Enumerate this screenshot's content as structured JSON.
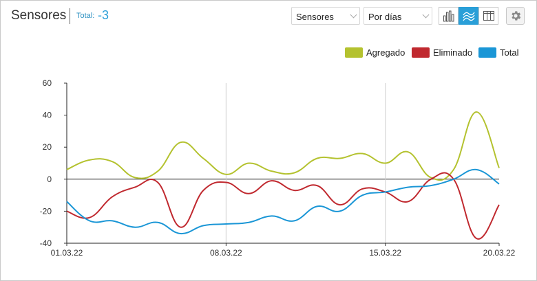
{
  "header": {
    "title": "Sensores",
    "total_label": "Total:",
    "total_value": "-3",
    "select_metric": "Sensores",
    "select_period": "Por días"
  },
  "icons": {
    "bar_chart": "bar-chart-icon",
    "line_chart": "line-chart-icon",
    "table": "table-icon",
    "settings": "gear-icon"
  },
  "colors": {
    "agregado": "#b4c22f",
    "eliminado": "#c0292f",
    "total": "#1a96d6",
    "accent": "#2a9fd8"
  },
  "chart_data": {
    "type": "line",
    "legend_position": "top-right",
    "grid": true,
    "x": [
      "01.03.22",
      "02.03.22",
      "03.03.22",
      "04.03.22",
      "05.03.22",
      "06.03.22",
      "07.03.22",
      "08.03.22",
      "09.03.22",
      "10.03.22",
      "11.03.22",
      "12.03.22",
      "13.03.22",
      "14.03.22",
      "15.03.22",
      "16.03.22",
      "17.03.22",
      "18.03.22",
      "19.03.22",
      "20.03.22"
    ],
    "x_ticks": [
      "01.03.22",
      "08.03.22",
      "15.03.22",
      "20.03.22"
    ],
    "ylim": [
      -40,
      60
    ],
    "y_ticks": [
      60,
      40,
      20,
      0,
      -20,
      -40
    ],
    "series": [
      {
        "name": "Agregado",
        "color": "#b4c22f",
        "values": [
          6,
          12,
          11,
          1,
          5,
          23,
          13,
          3,
          10,
          5,
          4,
          13,
          13,
          16,
          10,
          17,
          1,
          6,
          42,
          7
        ]
      },
      {
        "name": "Eliminado",
        "color": "#c0292f",
        "values": [
          -20,
          -24,
          -11,
          -5,
          -2,
          -30,
          -7,
          -2,
          -9,
          -1,
          -7,
          -4,
          -16,
          -6,
          -8,
          -14,
          0,
          0,
          -37,
          -16
        ]
      },
      {
        "name": "Total",
        "color": "#1a96d6",
        "values": [
          -14,
          -26,
          -26,
          -30,
          -27,
          -34,
          -29,
          -28,
          -27,
          -23,
          -26,
          -17,
          -20,
          -10,
          -8,
          -5,
          -4,
          0,
          6,
          -3
        ]
      }
    ]
  }
}
